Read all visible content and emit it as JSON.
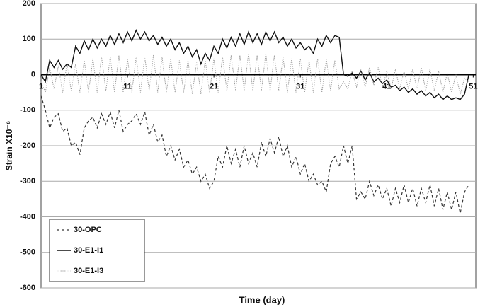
{
  "chart_data": {
    "type": "line",
    "xlabel": "Time (day)",
    "ylabel": "Strain X10⁻⁶",
    "xlim": [
      1,
      51.3
    ],
    "xticks": [
      1,
      11,
      21,
      31,
      41,
      51
    ],
    "ylim": [
      -600,
      200
    ],
    "yticks": [
      -600,
      -500,
      -400,
      -300,
      -200,
      -100,
      0,
      100,
      200
    ],
    "grid": true,
    "legend": "lower left",
    "x": [
      1,
      1.5,
      2,
      2.5,
      3,
      3.5,
      4,
      4.5,
      5,
      5.5,
      6,
      6.5,
      7,
      7.5,
      8,
      8.5,
      9,
      9.5,
      10,
      10.5,
      11,
      11.5,
      12,
      12.5,
      13,
      13.5,
      14,
      14.5,
      15,
      15.5,
      16,
      16.5,
      17,
      17.5,
      18,
      18.5,
      19,
      19.5,
      20,
      20.5,
      21,
      21.5,
      22,
      22.5,
      23,
      23.5,
      24,
      24.5,
      25,
      25.5,
      26,
      26.5,
      27,
      27.5,
      28,
      28.5,
      29,
      29.5,
      30,
      30.5,
      31,
      31.5,
      32,
      32.5,
      33,
      33.5,
      34,
      34.5,
      35,
      35.5,
      36,
      36.5,
      37,
      37.5,
      38,
      38.5,
      39,
      39.5,
      40,
      40.5,
      41,
      41.5,
      42,
      42.5,
      43,
      43.5,
      44,
      44.5,
      45,
      45.5,
      46,
      46.5,
      47,
      47.5,
      48,
      48.5,
      49,
      49.5,
      50,
      50.5
    ],
    "series": [
      {
        "name": "30-OPC",
        "color": "#333333",
        "dash": "dashed",
        "values": [
          -60,
          -100,
          -150,
          -120,
          -110,
          -160,
          -150,
          -200,
          -190,
          -225,
          -150,
          -130,
          -120,
          -150,
          -110,
          -140,
          -105,
          -150,
          -100,
          -160,
          -140,
          -130,
          -110,
          -140,
          -105,
          -170,
          -140,
          -190,
          -170,
          -230,
          -200,
          -240,
          -210,
          -260,
          -240,
          -280,
          -260,
          -300,
          -280,
          -320,
          -300,
          -230,
          -260,
          -200,
          -250,
          -210,
          -260,
          -200,
          -250,
          -220,
          -260,
          -190,
          -230,
          -180,
          -220,
          -175,
          -230,
          -200,
          -260,
          -230,
          -280,
          -250,
          -300,
          -280,
          -310,
          -300,
          -330,
          -250,
          -230,
          -260,
          -200,
          -250,
          -200,
          -350,
          -330,
          -350,
          -300,
          -340,
          -310,
          -350,
          -320,
          -370,
          -320,
          -360,
          -310,
          -360,
          -320,
          -370,
          -320,
          -360,
          -310,
          -370,
          -320,
          -380,
          -330,
          -380,
          -330,
          -390,
          -330,
          -310
        ]
      },
      {
        "name": "30-E1-I1",
        "color": "#111111",
        "dash": "solid",
        "values": [
          0,
          -20,
          40,
          20,
          40,
          15,
          30,
          20,
          80,
          60,
          95,
          70,
          100,
          75,
          100,
          80,
          110,
          85,
          115,
          90,
          120,
          95,
          125,
          100,
          120,
          95,
          110,
          85,
          105,
          80,
          100,
          70,
          90,
          60,
          80,
          50,
          70,
          30,
          60,
          40,
          80,
          60,
          100,
          75,
          105,
          80,
          115,
          85,
          120,
          90,
          115,
          85,
          120,
          95,
          120,
          90,
          105,
          80,
          100,
          75,
          90,
          70,
          80,
          60,
          100,
          80,
          110,
          90,
          110,
          105,
          0,
          -5,
          5,
          -10,
          10,
          -15,
          5,
          -20,
          -10,
          -25,
          -15,
          -35,
          -30,
          -45,
          -35,
          -50,
          -40,
          -55,
          -45,
          -60,
          -50,
          -65,
          -55,
          -70,
          -60,
          -70,
          -65,
          -70,
          -55,
          0
        ]
      },
      {
        "name": "30-E1-I3",
        "color": "#9a9a9a",
        "dash": "dotted",
        "values": [
          -20,
          -50,
          20,
          -40,
          25,
          -50,
          30,
          -45,
          30,
          -50,
          40,
          -50,
          45,
          -50,
          50,
          -45,
          50,
          -50,
          55,
          -50,
          45,
          -50,
          50,
          -50,
          50,
          -45,
          55,
          -50,
          50,
          -50,
          45,
          -50,
          40,
          -50,
          40,
          -55,
          35,
          -55,
          40,
          -50,
          45,
          -50,
          50,
          -45,
          55,
          -45,
          55,
          -45,
          60,
          -45,
          55,
          -45,
          60,
          -45,
          55,
          -45,
          50,
          -50,
          45,
          -50,
          45,
          -50,
          40,
          -50,
          45,
          -50,
          45,
          -45,
          40,
          -40,
          -20,
          -40,
          10,
          -35,
          15,
          -35,
          20,
          -30,
          20,
          -35,
          10,
          -40,
          15,
          -40,
          10,
          -40,
          15,
          -40,
          20,
          -45,
          15,
          -45,
          10,
          -50,
          5,
          -50,
          0,
          -55,
          -10,
          -20
        ]
      }
    ]
  }
}
